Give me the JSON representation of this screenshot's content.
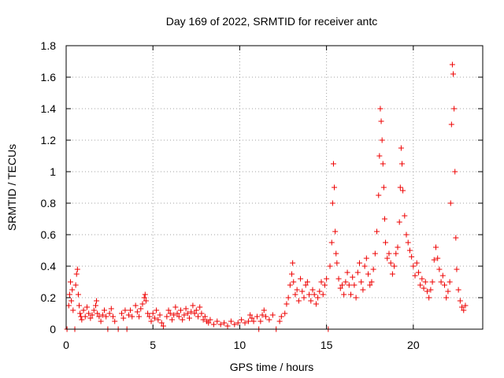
{
  "chart_data": {
    "type": "scatter",
    "title": "Day 169 of 2022, SRMTID for receiver antc",
    "xlabel": "GPS time / hours",
    "ylabel": "SRMTID / TECUs",
    "xlim": [
      0,
      24
    ],
    "ylim": [
      0,
      1.8
    ],
    "x_ticks": [
      0,
      5,
      10,
      15,
      20
    ],
    "x_tick_labels": [
      "0",
      "5",
      "10",
      "15",
      "20"
    ],
    "y_ticks": [
      0,
      0.2,
      0.4,
      0.6,
      0.8,
      1,
      1.2,
      1.4,
      1.6,
      1.8
    ],
    "y_tick_labels": [
      "0",
      "0.2",
      "0.4",
      "0.6",
      "0.8",
      "1",
      "1.2",
      "1.4",
      "1.6",
      "1.8"
    ],
    "grid": true,
    "marker": "plus",
    "color": "#ee0000",
    "series": [
      {
        "name": "SRMTID",
        "points": [
          [
            0.05,
            0.0
          ],
          [
            0.15,
            0.15
          ],
          [
            0.2,
            0.22
          ],
          [
            0.25,
            0.3
          ],
          [
            0.3,
            0.18
          ],
          [
            0.35,
            0.25
          ],
          [
            0.4,
            0.12
          ],
          [
            0.5,
            0.0
          ],
          [
            0.55,
            0.28
          ],
          [
            0.6,
            0.35
          ],
          [
            0.65,
            0.38
          ],
          [
            0.7,
            0.22
          ],
          [
            0.75,
            0.15
          ],
          [
            0.8,
            0.1
          ],
          [
            0.85,
            0.08
          ],
          [
            0.9,
            0.06
          ],
          [
            1.0,
            0.12
          ],
          [
            1.1,
            0.08
          ],
          [
            1.2,
            0.14
          ],
          [
            1.3,
            0.1
          ],
          [
            1.4,
            0.07
          ],
          [
            1.5,
            0.09
          ],
          [
            1.6,
            0.12
          ],
          [
            1.7,
            0.15
          ],
          [
            1.75,
            0.18
          ],
          [
            1.8,
            0.1
          ],
          [
            1.9,
            0.08
          ],
          [
            2.0,
            0.05
          ],
          [
            2.1,
            0.09
          ],
          [
            2.2,
            0.12
          ],
          [
            2.3,
            0.08
          ],
          [
            2.4,
            0.0
          ],
          [
            2.5,
            0.1
          ],
          [
            2.6,
            0.13
          ],
          [
            2.7,
            0.08
          ],
          [
            2.8,
            0.05
          ],
          [
            3.0,
            0.0
          ],
          [
            3.2,
            0.1
          ],
          [
            3.3,
            0.07
          ],
          [
            3.4,
            0.12
          ],
          [
            3.5,
            0.0
          ],
          [
            3.6,
            0.09
          ],
          [
            3.7,
            0.12
          ],
          [
            3.8,
            0.08
          ],
          [
            4.0,
            0.15
          ],
          [
            4.1,
            0.11
          ],
          [
            4.2,
            0.08
          ],
          [
            4.3,
            0.13
          ],
          [
            4.4,
            0.16
          ],
          [
            4.5,
            0.2
          ],
          [
            4.55,
            0.22
          ],
          [
            4.6,
            0.18
          ],
          [
            4.7,
            0.1
          ],
          [
            4.8,
            0.08
          ],
          [
            4.9,
            0.05
          ],
          [
            5.0,
            0.1
          ],
          [
            5.1,
            0.07
          ],
          [
            5.2,
            0.12
          ],
          [
            5.3,
            0.06
          ],
          [
            5.4,
            0.09
          ],
          [
            5.5,
            0.04
          ],
          [
            5.6,
            0.02
          ],
          [
            5.8,
            0.08
          ],
          [
            5.9,
            0.12
          ],
          [
            6.0,
            0.1
          ],
          [
            6.1,
            0.06
          ],
          [
            6.2,
            0.09
          ],
          [
            6.3,
            0.14
          ],
          [
            6.4,
            0.1
          ],
          [
            6.5,
            0.08
          ],
          [
            6.6,
            0.12
          ],
          [
            6.7,
            0.06
          ],
          [
            6.8,
            0.09
          ],
          [
            6.9,
            0.13
          ],
          [
            7.0,
            0.1
          ],
          [
            7.1,
            0.07
          ],
          [
            7.2,
            0.11
          ],
          [
            7.3,
            0.15
          ],
          [
            7.4,
            0.1
          ],
          [
            7.5,
            0.12
          ],
          [
            7.6,
            0.08
          ],
          [
            7.7,
            0.14
          ],
          [
            7.8,
            0.1
          ],
          [
            7.9,
            0.06
          ],
          [
            8.0,
            0.08
          ],
          [
            8.1,
            0.05
          ],
          [
            8.2,
            0.04
          ],
          [
            8.3,
            0.06
          ],
          [
            8.5,
            0.03
          ],
          [
            8.7,
            0.05
          ],
          [
            8.9,
            0.03
          ],
          [
            9.1,
            0.04
          ],
          [
            9.3,
            0.02
          ],
          [
            9.5,
            0.05
          ],
          [
            9.7,
            0.03
          ],
          [
            9.9,
            0.04
          ],
          [
            10.1,
            0.06
          ],
          [
            10.3,
            0.04
          ],
          [
            10.5,
            0.05
          ],
          [
            10.6,
            0.09
          ],
          [
            10.7,
            0.07
          ],
          [
            10.8,
            0.05
          ],
          [
            11.0,
            0.08
          ],
          [
            11.1,
            0.0
          ],
          [
            11.2,
            0.05
          ],
          [
            11.3,
            0.09
          ],
          [
            11.4,
            0.12
          ],
          [
            11.5,
            0.08
          ],
          [
            11.7,
            0.06
          ],
          [
            11.9,
            0.09
          ],
          [
            12.1,
            0.0
          ],
          [
            12.3,
            0.05
          ],
          [
            12.4,
            0.08
          ],
          [
            12.6,
            0.1
          ],
          [
            12.7,
            0.16
          ],
          [
            12.8,
            0.2
          ],
          [
            12.9,
            0.28
          ],
          [
            13.0,
            0.35
          ],
          [
            13.05,
            0.42
          ],
          [
            13.1,
            0.3
          ],
          [
            13.2,
            0.22
          ],
          [
            13.3,
            0.25
          ],
          [
            13.4,
            0.18
          ],
          [
            13.5,
            0.32
          ],
          [
            13.6,
            0.24
          ],
          [
            13.7,
            0.2
          ],
          [
            13.8,
            0.28
          ],
          [
            13.9,
            0.3
          ],
          [
            14.0,
            0.22
          ],
          [
            14.1,
            0.18
          ],
          [
            14.2,
            0.25
          ],
          [
            14.3,
            0.22
          ],
          [
            14.4,
            0.16
          ],
          [
            14.5,
            0.2
          ],
          [
            14.6,
            0.24
          ],
          [
            14.7,
            0.3
          ],
          [
            14.8,
            0.22
          ],
          [
            14.9,
            0.28
          ],
          [
            15.0,
            0.32
          ],
          [
            15.1,
            0.0
          ],
          [
            15.2,
            0.4
          ],
          [
            15.3,
            0.55
          ],
          [
            15.35,
            0.8
          ],
          [
            15.4,
            1.05
          ],
          [
            15.45,
            0.9
          ],
          [
            15.5,
            0.62
          ],
          [
            15.55,
            0.48
          ],
          [
            15.6,
            0.42
          ],
          [
            15.7,
            0.32
          ],
          [
            15.8,
            0.26
          ],
          [
            15.9,
            0.28
          ],
          [
            16.0,
            0.22
          ],
          [
            16.1,
            0.3
          ],
          [
            16.2,
            0.36
          ],
          [
            16.3,
            0.28
          ],
          [
            16.4,
            0.22
          ],
          [
            16.5,
            0.33
          ],
          [
            16.6,
            0.28
          ],
          [
            16.7,
            0.2
          ],
          [
            16.8,
            0.36
          ],
          [
            16.9,
            0.42
          ],
          [
            17.0,
            0.3
          ],
          [
            17.1,
            0.25
          ],
          [
            17.2,
            0.4
          ],
          [
            17.3,
            0.45
          ],
          [
            17.4,
            0.35
          ],
          [
            17.5,
            0.28
          ],
          [
            17.6,
            0.3
          ],
          [
            17.7,
            0.38
          ],
          [
            17.8,
            0.48
          ],
          [
            17.9,
            0.62
          ],
          [
            18.0,
            0.85
          ],
          [
            18.05,
            1.1
          ],
          [
            18.1,
            1.4
          ],
          [
            18.15,
            1.32
          ],
          [
            18.2,
            1.2
          ],
          [
            18.25,
            1.05
          ],
          [
            18.3,
            0.9
          ],
          [
            18.35,
            0.7
          ],
          [
            18.4,
            0.55
          ],
          [
            18.5,
            0.45
          ],
          [
            18.6,
            0.48
          ],
          [
            18.7,
            0.42
          ],
          [
            18.8,
            0.35
          ],
          [
            18.9,
            0.4
          ],
          [
            19.0,
            0.48
          ],
          [
            19.1,
            0.52
          ],
          [
            19.2,
            0.68
          ],
          [
            19.25,
            0.9
          ],
          [
            19.3,
            1.15
          ],
          [
            19.35,
            1.05
          ],
          [
            19.4,
            0.88
          ],
          [
            19.5,
            0.72
          ],
          [
            19.6,
            0.6
          ],
          [
            19.7,
            0.55
          ],
          [
            19.8,
            0.5
          ],
          [
            19.9,
            0.46
          ],
          [
            20.0,
            0.4
          ],
          [
            20.1,
            0.34
          ],
          [
            20.2,
            0.42
          ],
          [
            20.3,
            0.36
          ],
          [
            20.4,
            0.28
          ],
          [
            20.5,
            0.32
          ],
          [
            20.6,
            0.26
          ],
          [
            20.7,
            0.3
          ],
          [
            20.8,
            0.24
          ],
          [
            20.9,
            0.2
          ],
          [
            21.0,
            0.25
          ],
          [
            21.1,
            0.3
          ],
          [
            21.2,
            0.44
          ],
          [
            21.3,
            0.52
          ],
          [
            21.4,
            0.45
          ],
          [
            21.5,
            0.38
          ],
          [
            21.6,
            0.3
          ],
          [
            21.7,
            0.34
          ],
          [
            21.8,
            0.28
          ],
          [
            21.9,
            0.2
          ],
          [
            22.0,
            0.24
          ],
          [
            22.1,
            0.3
          ],
          [
            22.15,
            0.8
          ],
          [
            22.2,
            1.3
          ],
          [
            22.25,
            1.68
          ],
          [
            22.3,
            1.62
          ],
          [
            22.35,
            1.4
          ],
          [
            22.4,
            1.0
          ],
          [
            22.45,
            0.58
          ],
          [
            22.5,
            0.38
          ],
          [
            22.6,
            0.25
          ],
          [
            22.7,
            0.18
          ],
          [
            22.8,
            0.14
          ],
          [
            22.9,
            0.12
          ],
          [
            23.0,
            0.15
          ]
        ]
      }
    ]
  }
}
